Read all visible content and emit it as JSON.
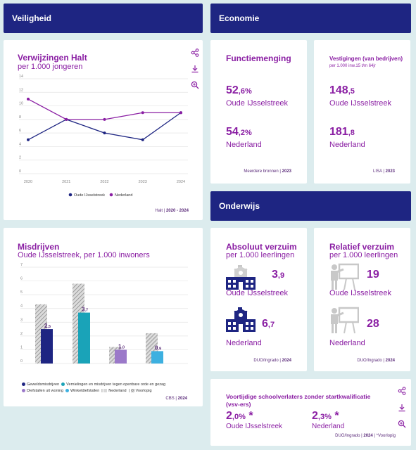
{
  "sections": {
    "veiligheid": "Veiligheid",
    "economie": "Economie",
    "onderwijs": "Onderwijs"
  },
  "verwijzingen": {
    "title": "Verwijzingen Halt",
    "subtitle": "per 1.000 jongeren",
    "source": "Halt",
    "period": "2020 - 2024"
  },
  "misdrijven": {
    "title": "Misdrijven",
    "subtitle": "Oude IJsselstreek, per 1.000 inwoners",
    "source": "CBS",
    "period": "2024",
    "legend": [
      "Geweldsmisdrijven",
      "Vernielingen en misdrijven tegen openbare orde en gezag",
      "Diefstallen uit woning",
      "Winkeldiefstallen",
      "Nederland",
      "Voorlopig"
    ]
  },
  "functiemenging": {
    "title": "Functiemenging",
    "value1_int": "52",
    "value1_dec": ",6%",
    "region1": "Oude IJsselstreek",
    "value2_int": "54",
    "value2_dec": ",2%",
    "region2": "Nederland",
    "source": "Meerdere bronnen",
    "period": "2023"
  },
  "vestigingen": {
    "title": "Vestigingen (van bedrijven)",
    "subtitle": "per 1.000 inw.15 t/m 64jr",
    "value1_int": "148",
    "value1_dec": ",5",
    "region1": "Oude IJsselstreek",
    "value2_int": "181",
    "value2_dec": ",8",
    "region2": "Nederland",
    "source": "LISA",
    "period": "2023"
  },
  "absoluut": {
    "title": "Absoluut verzuim",
    "subtitle": "per 1.000 leerlingen",
    "value1_int": "3",
    "value1_dec": ",9",
    "region1": "Oude IJsselstreek",
    "value2_int": "6",
    "value2_dec": ",7",
    "region2": "Nederland",
    "source": "DUO/Ingrado",
    "period": "2024"
  },
  "relatief": {
    "title": "Relatief verzuim",
    "subtitle": "per 1.000 leerlingen",
    "value1": "19",
    "region1": "Oude IJsselstreek",
    "value2": "28",
    "region2": "Nederland",
    "source": "DUO/Ingrado",
    "period": "2024"
  },
  "schoolverlaters": {
    "title": "Voortijdige schoolverlaters zonder startkwalificatie (vsv-ers)",
    "value1_int": "2",
    "value1_dec": ",0%",
    "value1_star": "*",
    "region1": "Oude IJsselstreek",
    "value2_int": "2",
    "value2_dec": ",3%",
    "value2_star": "*",
    "region2": "Nederland",
    "source": "DUO/Ingrado",
    "period": "2024",
    "note": "*Voorlopig"
  },
  "colors": {
    "navy": "#1e2582",
    "purple": "#8a1ea3",
    "teal": "#1aa3b8",
    "lavender": "#9b79c9",
    "lightblue": "#3db0e0",
    "grey": "#c8c8c8"
  },
  "chart_data": [
    {
      "type": "line",
      "x": [
        "2020",
        "2021",
        "2022",
        "2023",
        "2024"
      ],
      "ylim": [
        0,
        14
      ],
      "yticks": [
        "0",
        "2",
        "4",
        "6",
        "8",
        "10",
        "12",
        "14"
      ],
      "grid": true,
      "legend_position": "bottom",
      "series": [
        {
          "name": "Oude IJsselstreek",
          "values": [
            5,
            8,
            6,
            5,
            9
          ],
          "color": "#1e2582"
        },
        {
          "name": "Nederland",
          "values": [
            11,
            8,
            8,
            9,
            9
          ],
          "color": "#8a1ea3"
        }
      ]
    },
    {
      "type": "bar",
      "categories": [
        "Geweldsmisdrijven",
        "Vernielingen en misdrijven tegen openbare orde en gezag",
        "Diefstallen uit woning",
        "Winkeldiefstallen"
      ],
      "ylim": [
        0,
        7
      ],
      "yticks": [
        "0",
        "1",
        "2",
        "3",
        "4",
        "5",
        "6",
        "7"
      ],
      "grid": true,
      "legend_position": "bottom",
      "series": [
        {
          "name": "Nederland",
          "values": [
            4.3,
            5.8,
            1.2,
            2.2
          ],
          "pattern": "hatched"
        },
        {
          "name": "Oude IJsselstreek",
          "values": [
            2.5,
            3.7,
            1.0,
            0.9
          ],
          "colors": [
            "#1e2582",
            "#1aa3b8",
            "#9b79c9",
            "#3db0e0"
          ]
        }
      ],
      "data_labels": [
        {
          "int": "2",
          "dec": ",5"
        },
        {
          "int": "3",
          "dec": ",7"
        },
        {
          "int": "1",
          "dec": ",0"
        },
        {
          "int": "0",
          "dec": ",9"
        }
      ]
    }
  ]
}
